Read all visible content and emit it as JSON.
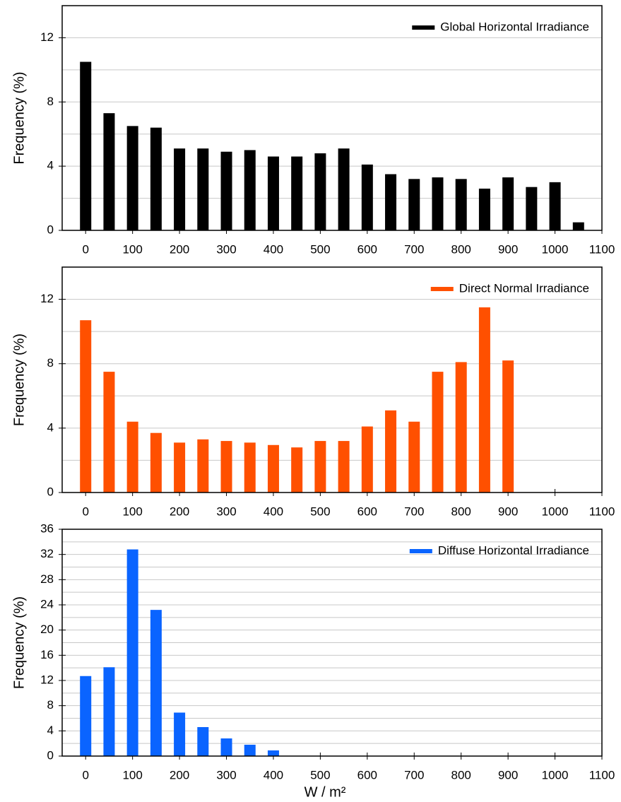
{
  "chart_data": [
    {
      "type": "bar",
      "ylabel": "Frequency (%)",
      "legend": "upper right",
      "x": [
        0,
        50,
        100,
        150,
        200,
        250,
        300,
        350,
        400,
        450,
        500,
        550,
        600,
        650,
        700,
        750,
        800,
        850,
        900,
        950,
        1000,
        1050
      ],
      "series": [
        {
          "name": "Global Horizontal Irradiance",
          "color": "#000000",
          "values": [
            10.5,
            7.3,
            6.5,
            6.4,
            5.1,
            5.1,
            4.9,
            5.0,
            4.6,
            4.6,
            4.8,
            5.1,
            4.1,
            3.5,
            3.2,
            3.3,
            3.2,
            2.6,
            3.3,
            2.7,
            3.0,
            0.5
          ]
        }
      ],
      "xlim": [
        -50,
        1100
      ],
      "xticks": [
        0,
        100,
        200,
        300,
        400,
        500,
        600,
        700,
        800,
        900,
        1000,
        1100
      ],
      "ylim": [
        0,
        14
      ],
      "yticks": [
        0,
        4,
        8,
        12
      ],
      "minor_yticks": [
        2,
        6,
        10
      ],
      "grid": true
    },
    {
      "type": "bar",
      "ylabel": "Frequency (%)",
      "legend": "upper right",
      "x": [
        0,
        50,
        100,
        150,
        200,
        250,
        300,
        350,
        400,
        450,
        500,
        550,
        600,
        650,
        700,
        750,
        800,
        850,
        900
      ],
      "series": [
        {
          "name": "Direct Normal Irradiance",
          "color": "#ff5000",
          "values": [
            10.7,
            7.5,
            4.4,
            3.7,
            3.1,
            3.3,
            3.2,
            3.1,
            2.95,
            2.8,
            3.2,
            3.2,
            4.1,
            5.1,
            4.4,
            7.5,
            8.1,
            11.5,
            8.2
          ]
        }
      ],
      "xlim": [
        -50,
        1100
      ],
      "xticks": [
        0,
        100,
        200,
        300,
        400,
        500,
        600,
        700,
        800,
        900,
        1000,
        1100
      ],
      "ylim": [
        0,
        14
      ],
      "yticks": [
        0,
        4,
        8,
        12
      ],
      "minor_yticks": [
        2,
        6,
        10
      ],
      "grid": true
    },
    {
      "type": "bar",
      "ylabel": "Frequency (%)",
      "xlabel": "W / m²",
      "legend": "upper right",
      "x": [
        0,
        50,
        100,
        150,
        200,
        250,
        300,
        350,
        400
      ],
      "series": [
        {
          "name": "Diffuse Horizontal Irradiance",
          "color": "#0a64ff",
          "values": [
            12.7,
            14.1,
            32.8,
            23.2,
            6.9,
            4.6,
            2.8,
            1.8,
            0.9
          ]
        }
      ],
      "xlim": [
        -50,
        1100
      ],
      "xticks": [
        0,
        100,
        200,
        300,
        400,
        500,
        600,
        700,
        800,
        900,
        1000,
        1100
      ],
      "ylim": [
        0,
        36
      ],
      "yticks": [
        0,
        4,
        8,
        12,
        16,
        20,
        24,
        28,
        32,
        36
      ],
      "minor_yticks": [
        2,
        6,
        10,
        14,
        18,
        22,
        26,
        30,
        34
      ],
      "grid": true
    }
  ]
}
